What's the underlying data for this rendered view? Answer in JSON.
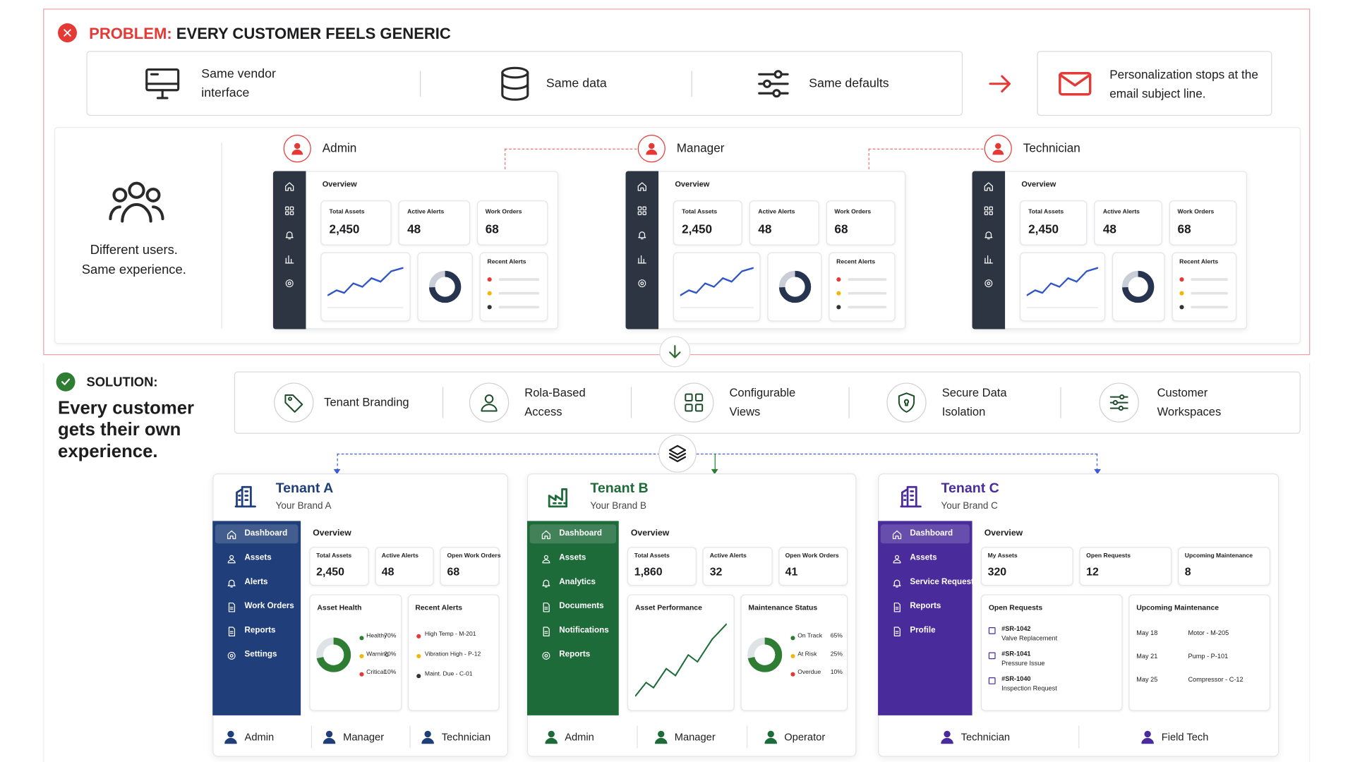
{
  "problem": {
    "label": "PROBLEM:",
    "title": "EVERY CUSTOMER FEELS GENERIC",
    "sameness": [
      "Same vendor interface",
      "Same data",
      "Same defaults"
    ],
    "callout": "Personalization stops at the email subject line.",
    "caption": "Different users. Same experience.",
    "roles": [
      "Admin",
      "Manager",
      "Technician"
    ],
    "dashboard": {
      "overview": "Overview",
      "kpis": [
        {
          "label": "Total Assets",
          "value": "2,450"
        },
        {
          "label": "Active Alerts",
          "value": "48"
        },
        {
          "label": "Work Orders",
          "value": "68"
        }
      ],
      "alerts_title": "Recent Alerts"
    }
  },
  "solution": {
    "label": "SOLUTION:",
    "headline": "Every customer gets their own experience.",
    "features": [
      "Tenant Branding",
      "Rola-Based Access",
      "Configurable Views",
      "Secure Data Isolation",
      "Customer Workspaces"
    ],
    "tenants": [
      {
        "name": "Tenant A",
        "brand": "Your Brand A",
        "color": "#1f3e7a",
        "nav": [
          "Dashboard",
          "Assets",
          "Alerts",
          "Work Orders",
          "Reports",
          "Settings"
        ],
        "overview": "Overview",
        "kpis": [
          {
            "label": "Total Assets",
            "value": "2,450"
          },
          {
            "label": "Active Alerts",
            "value": "48"
          },
          {
            "label": "Open Work Orders",
            "value": "68"
          }
        ],
        "panels": [
          {
            "title": "Asset Health",
            "legend": [
              {
                "label": "Healthy",
                "value": "70%"
              },
              {
                "label": "Warning",
                "value": "20%"
              },
              {
                "label": "Critical",
                "value": "10%"
              }
            ]
          },
          {
            "title": "Recent Alerts",
            "items": [
              "High Temp - M-201",
              "Vibration High - P-12",
              "Maint. Due - C-01"
            ]
          }
        ],
        "users": [
          "Admin",
          "Manager",
          "Technician"
        ]
      },
      {
        "name": "Tenant B",
        "brand": "Your Brand B",
        "color": "#1e6b3a",
        "nav": [
          "Dashboard",
          "Assets",
          "Analytics",
          "Documents",
          "Notifications",
          "Reports"
        ],
        "overview": "Overview",
        "kpis": [
          {
            "label": "Total Assets",
            "value": "1,860"
          },
          {
            "label": "Active Alerts",
            "value": "32"
          },
          {
            "label": "Open Work Orders",
            "value": "41"
          }
        ],
        "panels": [
          {
            "title": "Asset Performance"
          },
          {
            "title": "Maintenance Status",
            "legend": [
              {
                "label": "On Track",
                "value": "65%"
              },
              {
                "label": "At Risk",
                "value": "25%"
              },
              {
                "label": "Overdue",
                "value": "10%"
              }
            ]
          }
        ],
        "users": [
          "Admin",
          "Manager",
          "Operator"
        ]
      },
      {
        "name": "Tenant C",
        "brand": "Your Brand C",
        "color": "#4a2b9c",
        "nav": [
          "Dashboard",
          "Assets",
          "Service Requests",
          "Reports",
          "Profile"
        ],
        "overview": "Overview",
        "kpis": [
          {
            "label": "My Assets",
            "value": "320"
          },
          {
            "label": "Open Requests",
            "value": "12"
          },
          {
            "label": "Upcoming Maintenance",
            "value": "8"
          }
        ],
        "panels": [
          {
            "title": "Open Requests",
            "requests": [
              {
                "id": "#SR-1042",
                "desc": "Valve Replacement"
              },
              {
                "id": "#SR-1041",
                "desc": "Pressure Issue"
              },
              {
                "id": "#SR-1040",
                "desc": "Inspection Request"
              }
            ]
          },
          {
            "title": "Upcoming Maintenance",
            "schedule": [
              {
                "date": "May 18",
                "item": "Motor - M-205"
              },
              {
                "date": "May 21",
                "item": "Pump - P-101"
              },
              {
                "date": "May 25",
                "item": "Compressor - C-12"
              }
            ]
          }
        ],
        "users": [
          "Technician",
          "Field Tech"
        ]
      }
    ]
  }
}
